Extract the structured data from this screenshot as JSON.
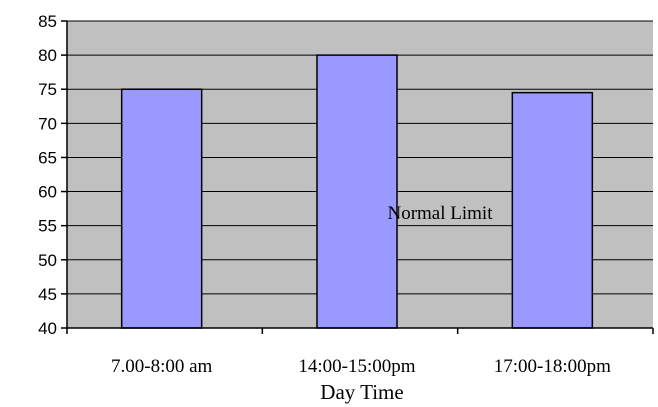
{
  "chart_data": {
    "type": "bar",
    "categories": [
      "7.00-8:00 am",
      "14:00-15:00pm",
      "17:00-18:00pm"
    ],
    "values": [
      75,
      80,
      74.5
    ],
    "title": "",
    "xlabel": "Day Time",
    "ylabel": "",
    "ylim": [
      40,
      85
    ],
    "yticks": [
      40,
      45,
      50,
      55,
      60,
      65,
      70,
      75,
      80,
      85
    ],
    "annotation": "Normal Limit",
    "grid": true,
    "legend": "none",
    "colors": {
      "plot_background": "#c0c0c0",
      "bar_fill": "#9999ff",
      "bar_stroke": "#000000",
      "gridline": "#000000"
    }
  }
}
